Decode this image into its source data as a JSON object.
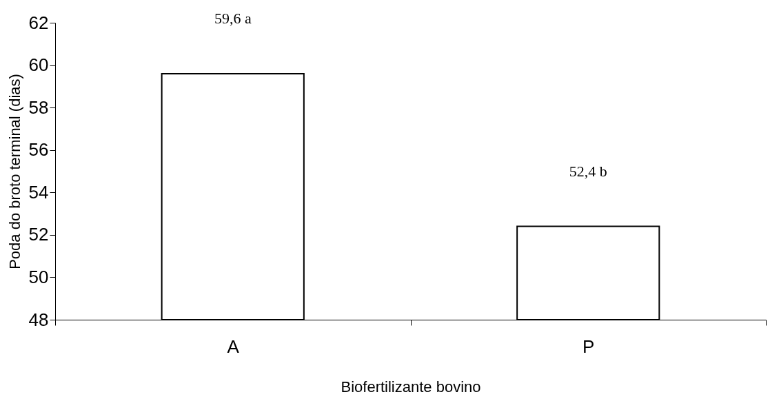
{
  "chart_data": {
    "type": "bar",
    "xlabel": "Biofertilizante bovino",
    "ylabel": "Poda do broto terminal (dias)",
    "categories": [
      "A",
      "P"
    ],
    "values": [
      59.6,
      52.4
    ],
    "value_labels": [
      "59,6 a",
      "52,4 b"
    ],
    "color": "#ffffff",
    "ylim": [
      48,
      62
    ],
    "yticks": [
      48,
      50,
      52,
      54,
      56,
      58,
      60,
      62
    ],
    "grid": false
  }
}
